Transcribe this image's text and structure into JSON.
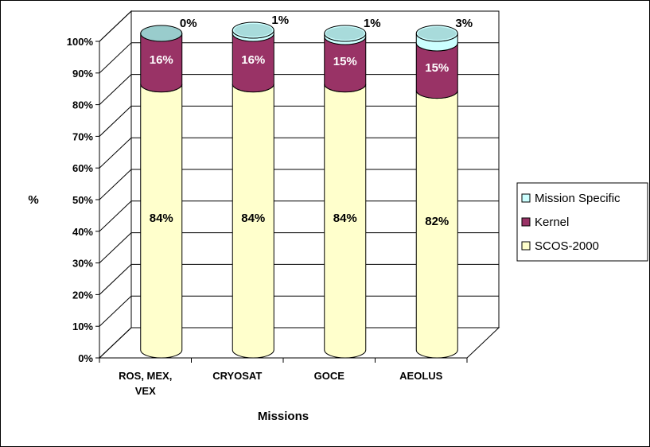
{
  "chart_data": {
    "type": "bar",
    "stacked": true,
    "percent_stacked": true,
    "three_d": true,
    "title": "",
    "xlabel": "Missions",
    "ylabel": "%",
    "ylim": [
      0,
      100
    ],
    "y_ticks": [
      "0%",
      "10%",
      "20%",
      "30%",
      "40%",
      "50%",
      "60%",
      "70%",
      "80%",
      "90%",
      "100%"
    ],
    "categories": [
      [
        "ROS, MEX,",
        "VEX"
      ],
      [
        "CRYOSAT"
      ],
      [
        "GOCE"
      ],
      [
        "AEOLUS"
      ]
    ],
    "series": [
      {
        "name": "SCOS-2000",
        "color": "#FFFFCC",
        "values": [
          84,
          84,
          84,
          82
        ],
        "labels": [
          "84%",
          "84%",
          "84%",
          "82%"
        ]
      },
      {
        "name": "Kernel",
        "color": "#993366",
        "values": [
          16,
          16,
          15,
          15
        ],
        "labels": [
          "16%",
          "16%",
          "15%",
          "15%"
        ]
      },
      {
        "name": "Mission Specific",
        "color": "#CCFFFF",
        "values": [
          0,
          1,
          1,
          3
        ],
        "labels": [
          "0%",
          "1%",
          "1%",
          "3%"
        ]
      }
    ],
    "legend": {
      "position": "right",
      "items": [
        "Mission Specific",
        "Kernel",
        "SCOS-2000"
      ]
    },
    "grid": true
  }
}
